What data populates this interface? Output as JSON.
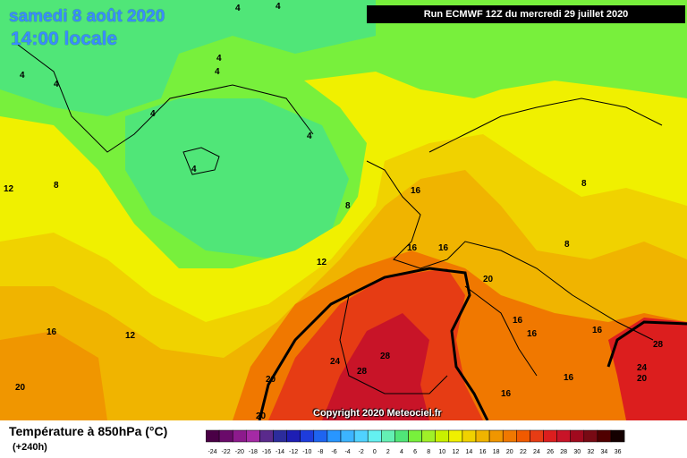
{
  "header": {
    "date": "samedi 8 août 2020",
    "local_time": "14:00 locale",
    "run_info": "Run ECMWF 12Z du mercredi 29 juillet 2020"
  },
  "footer": {
    "parameter": "Température à 850hPa (°C)",
    "lead_time": "(+240h)",
    "copyright": "Copyright 2020 Meteociel.fr"
  },
  "legend": {
    "values": [
      "-24",
      "-22",
      "-20",
      "-18",
      "-16",
      "-14",
      "-12",
      "-10",
      "-8",
      "-6",
      "-4",
      "-2",
      "0",
      "2",
      "4",
      "6",
      "8",
      "10",
      "12",
      "14",
      "16",
      "18",
      "20",
      "22",
      "24",
      "26",
      "28",
      "30",
      "32",
      "34",
      "36"
    ],
    "colors": [
      "#4a0046",
      "#6a0a6a",
      "#8c1a8c",
      "#a52aa5",
      "#5a2a8c",
      "#2c2c9c",
      "#1e1eb4",
      "#1e3cdc",
      "#1e64f0",
      "#2896ff",
      "#3cb4ff",
      "#50d2ff",
      "#64f0f0",
      "#64f0b4",
      "#50e678",
      "#78f03c",
      "#a0f028",
      "#c8f000",
      "#f0f000",
      "#f0d200",
      "#f0b400",
      "#f09600",
      "#f07800",
      "#f05a00",
      "#e63c14",
      "#dc1e1e",
      "#c81428",
      "#a00a1e",
      "#780a14",
      "#500000",
      "#140000"
    ]
  },
  "map_labels": [
    {
      "text": "4"
    },
    {
      "text": "4"
    },
    {
      "text": "4"
    },
    {
      "text": "4"
    },
    {
      "text": "4"
    },
    {
      "text": "4"
    },
    {
      "text": "4"
    },
    {
      "text": "4"
    },
    {
      "text": "4"
    },
    {
      "text": "12"
    },
    {
      "text": "8"
    },
    {
      "text": "8"
    },
    {
      "text": "12"
    },
    {
      "text": "12"
    },
    {
      "text": "16"
    },
    {
      "text": "20"
    },
    {
      "text": "20"
    },
    {
      "text": "20"
    },
    {
      "text": "24"
    },
    {
      "text": "28"
    },
    {
      "text": "28"
    },
    {
      "text": "16"
    },
    {
      "text": "16"
    },
    {
      "text": "16"
    },
    {
      "text": "20"
    },
    {
      "text": "16"
    },
    {
      "text": "16"
    },
    {
      "text": "16"
    },
    {
      "text": "16"
    },
    {
      "text": "16"
    },
    {
      "text": "8"
    },
    {
      "text": "8"
    },
    {
      "text": "28"
    },
    {
      "text": "24"
    },
    {
      "text": "20"
    }
  ]
}
